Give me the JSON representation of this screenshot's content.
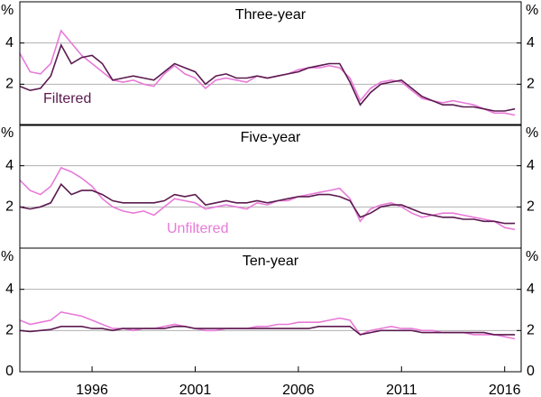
{
  "chart_data": [
    {
      "type": "line",
      "title": "Three-year",
      "y_label": "%",
      "x": [
        1992.5,
        1993,
        1993.5,
        1994,
        1994.5,
        1995,
        1995.5,
        1996,
        1996.5,
        1997,
        1997.5,
        1998,
        1998.5,
        1999,
        1999.5,
        2000,
        2000.5,
        2001,
        2001.5,
        2002,
        2002.5,
        2003,
        2003.5,
        2004,
        2004.5,
        2005,
        2005.5,
        2006,
        2006.5,
        2007,
        2007.5,
        2008,
        2008.5,
        2009,
        2009.5,
        2010,
        2010.5,
        2011,
        2011.5,
        2012,
        2012.5,
        2013,
        2013.5,
        2014,
        2014.5,
        2015,
        2015.5,
        2016,
        2016.5
      ],
      "series": [
        {
          "color": "#e87ad8",
          "values": [
            3.5,
            2.6,
            2.5,
            3.0,
            4.6,
            4.0,
            3.4,
            3.0,
            2.6,
            2.2,
            2.1,
            2.2,
            2.0,
            1.9,
            2.5,
            2.9,
            2.5,
            2.3,
            1.8,
            2.2,
            2.3,
            2.2,
            2.1,
            2.4,
            2.3,
            2.4,
            2.5,
            2.7,
            2.8,
            2.8,
            2.9,
            2.8,
            2.3,
            1.2,
            1.8,
            2.1,
            2.2,
            2.1,
            1.7,
            1.3,
            1.2,
            1.1,
            1.2,
            1.1,
            1.0,
            0.8,
            0.6,
            0.6,
            0.5
          ]
        },
        {
          "name": "Filtered",
          "color": "#5b1a4f",
          "values": [
            1.9,
            1.7,
            1.8,
            2.4,
            3.9,
            3.0,
            3.3,
            3.4,
            3.0,
            2.2,
            2.3,
            2.4,
            2.3,
            2.2,
            2.6,
            3.0,
            2.8,
            2.6,
            2.0,
            2.4,
            2.5,
            2.3,
            2.3,
            2.4,
            2.3,
            2.4,
            2.5,
            2.6,
            2.8,
            2.9,
            3.0,
            3.0,
            2.1,
            1.0,
            1.6,
            2.0,
            2.1,
            2.2,
            1.8,
            1.4,
            1.2,
            1.0,
            1.0,
            0.9,
            0.9,
            0.8,
            0.7,
            0.7,
            0.8
          ]
        }
      ],
      "xlim": [
        1992.5,
        2016.8
      ],
      "ylim": [
        0,
        6
      ],
      "yticks": [
        2,
        4
      ],
      "grid": true
    },
    {
      "type": "line",
      "title": "Five-year",
      "y_label": "%",
      "x": [
        1992.5,
        1993,
        1993.5,
        1994,
        1994.5,
        1995,
        1995.5,
        1996,
        1996.5,
        1997,
        1997.5,
        1998,
        1998.5,
        1999,
        1999.5,
        2000,
        2000.5,
        2001,
        2001.5,
        2002,
        2002.5,
        2003,
        2003.5,
        2004,
        2004.5,
        2005,
        2005.5,
        2006,
        2006.5,
        2007,
        2007.5,
        2008,
        2008.5,
        2009,
        2009.5,
        2010,
        2010.5,
        2011,
        2011.5,
        2012,
        2012.5,
        2013,
        2013.5,
        2014,
        2014.5,
        2015,
        2015.5,
        2016,
        2016.5
      ],
      "series": [
        {
          "name": "Unfiltered",
          "color": "#e87ad8",
          "values": [
            3.3,
            2.8,
            2.6,
            3.0,
            3.9,
            3.7,
            3.4,
            3.0,
            2.4,
            2.0,
            1.8,
            1.7,
            1.8,
            1.6,
            2.0,
            2.4,
            2.3,
            2.2,
            1.9,
            2.0,
            2.1,
            2.0,
            1.9,
            2.2,
            2.1,
            2.3,
            2.3,
            2.5,
            2.6,
            2.7,
            2.8,
            2.9,
            2.4,
            1.3,
            1.9,
            2.1,
            2.2,
            2.0,
            1.7,
            1.5,
            1.6,
            1.7,
            1.7,
            1.6,
            1.5,
            1.4,
            1.3,
            1.0,
            0.9
          ]
        },
        {
          "color": "#5b1a4f",
          "values": [
            2.0,
            1.9,
            2.0,
            2.2,
            3.1,
            2.6,
            2.8,
            2.8,
            2.6,
            2.3,
            2.2,
            2.2,
            2.2,
            2.2,
            2.3,
            2.6,
            2.5,
            2.6,
            2.1,
            2.2,
            2.3,
            2.2,
            2.2,
            2.3,
            2.2,
            2.3,
            2.4,
            2.5,
            2.5,
            2.6,
            2.6,
            2.5,
            2.3,
            1.5,
            1.7,
            2.0,
            2.1,
            2.1,
            1.9,
            1.7,
            1.6,
            1.5,
            1.5,
            1.4,
            1.4,
            1.3,
            1.3,
            1.2,
            1.2
          ]
        }
      ],
      "xlim": [
        1992.5,
        2016.8
      ],
      "ylim": [
        0,
        6
      ],
      "yticks": [
        2,
        4
      ],
      "grid": true
    },
    {
      "type": "line",
      "title": "Ten-year",
      "y_label": "%",
      "x": [
        1992.5,
        1993,
        1993.5,
        1994,
        1994.5,
        1995,
        1995.5,
        1996,
        1996.5,
        1997,
        1997.5,
        1998,
        1998.5,
        1999,
        1999.5,
        2000,
        2000.5,
        2001,
        2001.5,
        2002,
        2002.5,
        2003,
        2003.5,
        2004,
        2004.5,
        2005,
        2005.5,
        2006,
        2006.5,
        2007,
        2007.5,
        2008,
        2008.5,
        2009,
        2009.5,
        2010,
        2010.5,
        2011,
        2011.5,
        2012,
        2012.5,
        2013,
        2013.5,
        2014,
        2014.5,
        2015,
        2015.5,
        2016,
        2016.5
      ],
      "series": [
        {
          "color": "#e87ad8",
          "values": [
            2.5,
            2.3,
            2.4,
            2.5,
            2.9,
            2.8,
            2.7,
            2.5,
            2.3,
            2.1,
            2.1,
            2.0,
            2.1,
            2.1,
            2.2,
            2.3,
            2.2,
            2.1,
            2.0,
            2.0,
            2.1,
            2.1,
            2.1,
            2.2,
            2.2,
            2.3,
            2.3,
            2.4,
            2.4,
            2.4,
            2.5,
            2.6,
            2.5,
            1.8,
            2.0,
            2.1,
            2.2,
            2.1,
            2.1,
            2.0,
            2.0,
            1.9,
            1.9,
            1.9,
            1.8,
            1.8,
            1.8,
            1.7,
            1.6
          ]
        },
        {
          "color": "#5b1a4f",
          "values": [
            2.0,
            1.95,
            2.0,
            2.05,
            2.2,
            2.2,
            2.2,
            2.1,
            2.1,
            2.0,
            2.1,
            2.1,
            2.1,
            2.1,
            2.1,
            2.2,
            2.2,
            2.1,
            2.1,
            2.1,
            2.1,
            2.1,
            2.1,
            2.1,
            2.1,
            2.1,
            2.1,
            2.1,
            2.1,
            2.2,
            2.2,
            2.2,
            2.2,
            1.8,
            1.9,
            2.0,
            2.0,
            2.0,
            2.0,
            1.9,
            1.9,
            1.9,
            1.9,
            1.9,
            1.9,
            1.9,
            1.8,
            1.8,
            1.8
          ]
        }
      ],
      "xlim": [
        1992.5,
        2016.8
      ],
      "ylim": [
        0,
        6
      ],
      "yticks": [
        0,
        2,
        4
      ],
      "xticks": [
        1996,
        2001,
        2006,
        2011,
        2016
      ],
      "grid": true
    }
  ]
}
